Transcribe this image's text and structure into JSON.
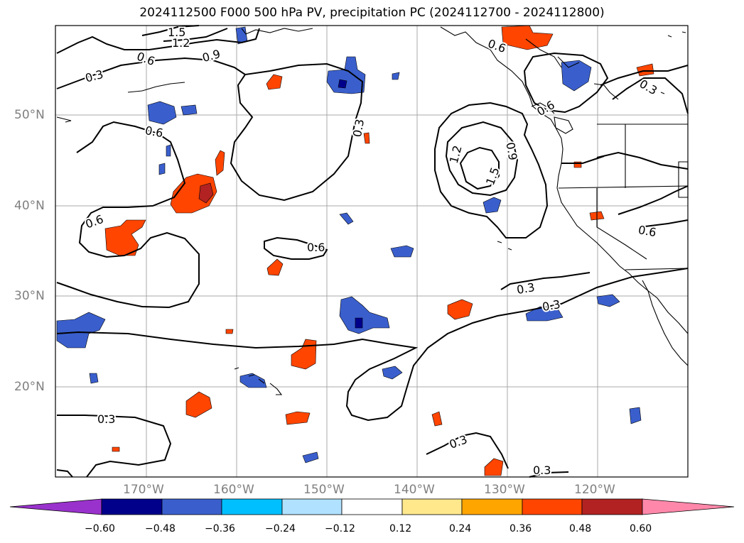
{
  "title": "2024112500 F000 500 hPa PV, precipitation PC (2024112700 - 2024112800)",
  "lat_labels": [
    "50°N",
    "40°N",
    "30°N",
    "20°N"
  ],
  "lon_labels": [
    "170°W",
    "160°W",
    "150°W",
    "140°W",
    "130°W",
    "120°W"
  ],
  "contour_labels": {
    "c_15a": "1.5",
    "c_12a": "1.2",
    "c_09a": "0.9",
    "c_06a": "0.6",
    "c_03a": "0.3",
    "c_06b": "0.6",
    "c_03b": "0.3",
    "c_06c": "0.6",
    "c_06d": "0.6",
    "c_06e": "0.6",
    "c_12b": "1.2",
    "c_15b": "1.5",
    "c_09b": "0.9",
    "c_06f": "0.6",
    "c_06g": "0.6",
    "c_03c": "0.3",
    "c_03d": "0.3",
    "c_03e": "0.3",
    "c_03f": "0.3",
    "c_03g": "0.3",
    "c_03h": "0.3",
    "c_03i": "0.3"
  },
  "colorbar": {
    "ticks": [
      "−0.60",
      "−0.48",
      "−0.36",
      "−0.24",
      "−0.12",
      "0.12",
      "0.24",
      "0.36",
      "0.48",
      "0.60"
    ],
    "colors": [
      "#9932cc",
      "#00008b",
      "#3a5fcd",
      "#00bfff",
      "#b0e2ff",
      "#ffffff",
      "#ffe88c",
      "#ffa500",
      "#ff4500",
      "#b22222",
      "#ff88aa"
    ]
  },
  "colors": {
    "neg_dark": "#00008b",
    "neg_mid": "#3a5fcd",
    "neg_light": "#00bfff",
    "pos_light": "#ffe88c",
    "pos_mid": "#ffa500",
    "pos_strong": "#ff4500",
    "pos_dark": "#b22222"
  }
}
